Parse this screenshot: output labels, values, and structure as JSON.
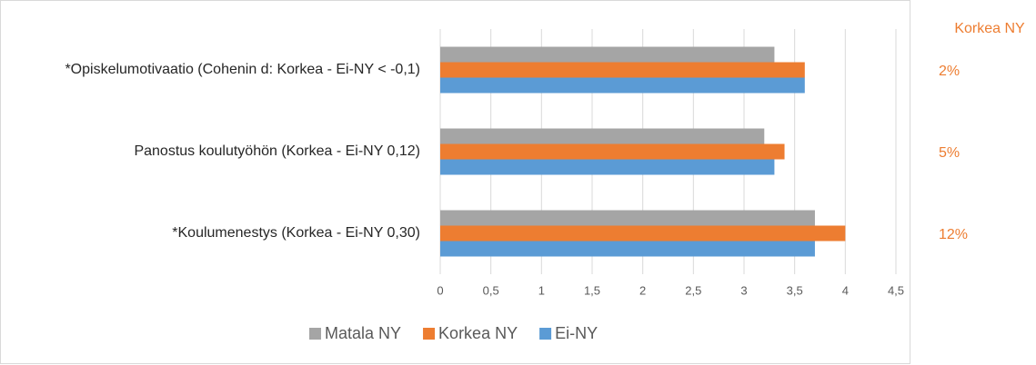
{
  "chart_data": {
    "type": "bar",
    "orientation": "horizontal",
    "categories": [
      "*Opiskelumotivaatio (Cohenin d: Korkea - Ei-NY < -0,1)",
      "Panostus koulutyöhön (Korkea - Ei-NY 0,12)",
      "*Koulumenestys (Korkea - Ei-NY 0,30)"
    ],
    "series": [
      {
        "name": "Matala NY",
        "color": "#a5a5a5",
        "values": [
          3.3,
          3.2,
          3.7
        ]
      },
      {
        "name": "Korkea NY",
        "color": "#ed7d31",
        "values": [
          3.6,
          3.4,
          4.0
        ]
      },
      {
        "name": "Ei-NY",
        "color": "#5b9bd5",
        "values": [
          3.6,
          3.3,
          3.7
        ]
      }
    ],
    "xlim": [
      0,
      4.5
    ],
    "xticks": [
      0,
      {
        "value": 0.5,
        "label": "0,5"
      },
      1,
      {
        "value": 1.5,
        "label": "1,5"
      },
      2,
      {
        "value": 2.5,
        "label": "2,5"
      },
      3,
      {
        "value": 3.5,
        "label": "3,5"
      },
      4,
      {
        "value": 4.5,
        "label": "4,5"
      }
    ],
    "grid": true,
    "legend": "bottom",
    "side_header": "Korkea NY",
    "side_labels": [
      "2%",
      "5%",
      "12%"
    ],
    "side_color": "#ed7d31"
  }
}
